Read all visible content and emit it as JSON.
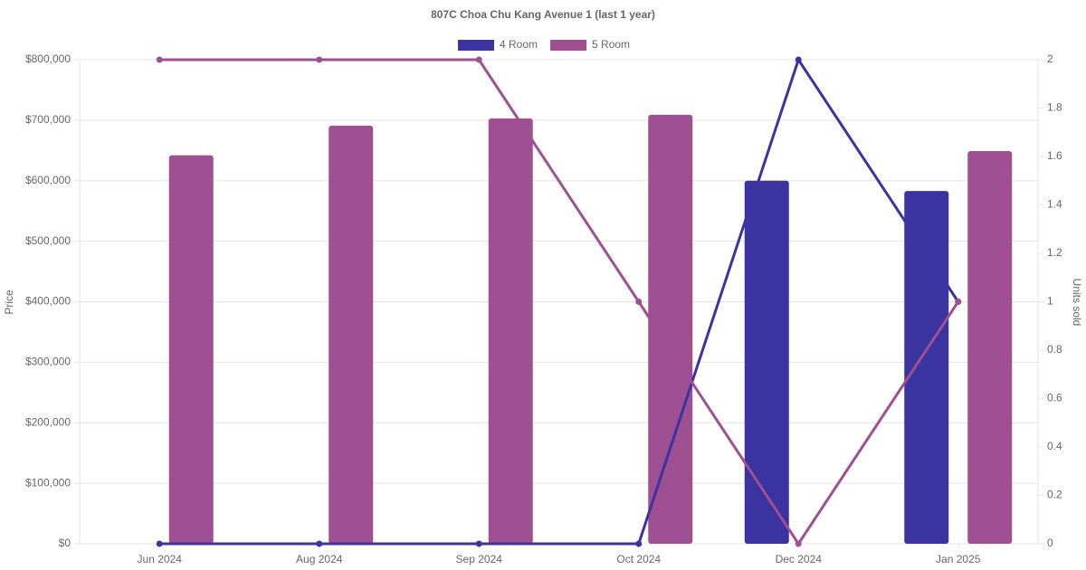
{
  "chart_data": {
    "type": "bar",
    "title": "807C Choa Chu Kang Avenue 1 (last 1 year)",
    "categories": [
      "Jun 2024",
      "Aug 2024",
      "Sep 2024",
      "Oct 2024",
      "Dec 2024",
      "Jan 2025"
    ],
    "series": [
      {
        "name": "4 Room",
        "type": "bar",
        "color": "#3a33a0",
        "values": [
          null,
          null,
          null,
          null,
          600000,
          583000
        ]
      },
      {
        "name": "5 Room",
        "type": "bar",
        "color": "#9f5093",
        "values": [
          642000,
          691000,
          703000,
          709000,
          null,
          649000
        ]
      },
      {
        "type": "line",
        "axis": "y2",
        "color": "#3a33a0",
        "values": [
          0,
          0,
          0,
          0,
          2,
          1
        ]
      },
      {
        "type": "line",
        "axis": "y2",
        "color": "#9f5093",
        "values": [
          2,
          2,
          2,
          1,
          0,
          1
        ]
      }
    ],
    "ylabel": "Price",
    "y2label": "Units sold",
    "ylim": [
      0,
      800000
    ],
    "yticks": [
      {
        "value": 0,
        "label": "$0"
      },
      {
        "value": 100000,
        "label": "$100,000"
      },
      {
        "value": 200000,
        "label": "$200,000"
      },
      {
        "value": 300000,
        "label": "$300,000"
      },
      {
        "value": 400000,
        "label": "$400,000"
      },
      {
        "value": 500000,
        "label": "$500,000"
      },
      {
        "value": 600000,
        "label": "$600,000"
      },
      {
        "value": 700000,
        "label": "$700,000"
      },
      {
        "value": 800000,
        "label": "$800,000"
      }
    ],
    "y2lim": [
      0,
      2
    ],
    "y2ticks": [
      0,
      0.2,
      0.4,
      0.6,
      0.8,
      1,
      1.2,
      1.4,
      1.6,
      1.8,
      2
    ],
    "grid": true,
    "legend": "top"
  }
}
